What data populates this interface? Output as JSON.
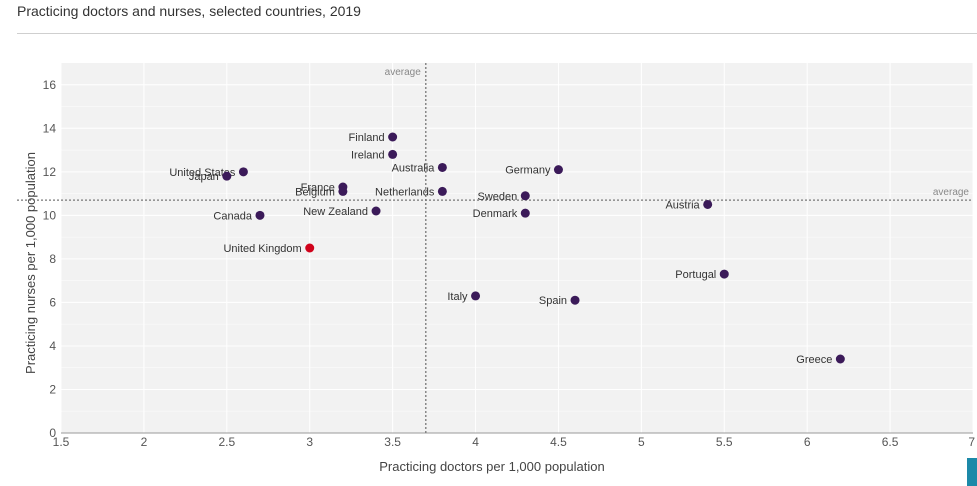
{
  "header": {
    "title": "Practicing doctors and nurses, selected countries, 2019"
  },
  "chart_data": {
    "type": "scatter",
    "xlabel": "Practicing doctors per 1,000 population",
    "ylabel": "Practicing nurses per 1,000 population",
    "xlim": [
      1.5,
      7
    ],
    "ylim": [
      0,
      17
    ],
    "xticks": [
      "1.5",
      "2",
      "2.5",
      "3",
      "3.5",
      "4",
      "4.5",
      "5",
      "5.5",
      "6",
      "6.5",
      "7"
    ],
    "yticks": [
      "0",
      "2",
      "4",
      "6",
      "8",
      "10",
      "12",
      "14",
      "16"
    ],
    "grid": true,
    "reference_lines": [
      {
        "axis": "x",
        "value": 3.7,
        "label": "average"
      },
      {
        "axis": "y",
        "value": 10.7,
        "label": "average"
      }
    ],
    "colors": {
      "default": "#3b1a59",
      "highlight": "#d0021b",
      "plot_bg": "#f2f2f2",
      "grid": "#ffffff"
    },
    "points": [
      {
        "label": "United States",
        "x": 2.6,
        "y": 12.0,
        "highlight": false
      },
      {
        "label": "Japan",
        "x": 2.5,
        "y": 11.8,
        "highlight": false
      },
      {
        "label": "Canada",
        "x": 2.7,
        "y": 10.0,
        "highlight": false
      },
      {
        "label": "France",
        "x": 3.2,
        "y": 11.3,
        "highlight": false
      },
      {
        "label": "Belgium",
        "x": 3.2,
        "y": 11.1,
        "highlight": false
      },
      {
        "label": "United Kingdom",
        "x": 3.0,
        "y": 8.5,
        "highlight": true
      },
      {
        "label": "New Zealand",
        "x": 3.4,
        "y": 10.2,
        "highlight": false
      },
      {
        "label": "Finland",
        "x": 3.5,
        "y": 13.6,
        "highlight": false
      },
      {
        "label": "Ireland",
        "x": 3.5,
        "y": 12.8,
        "highlight": false
      },
      {
        "label": "Australia",
        "x": 3.8,
        "y": 12.2,
        "highlight": false
      },
      {
        "label": "Netherlands",
        "x": 3.8,
        "y": 11.1,
        "highlight": false
      },
      {
        "label": "Germany",
        "x": 4.5,
        "y": 12.1,
        "highlight": false
      },
      {
        "label": "Sweden",
        "x": 4.3,
        "y": 10.9,
        "highlight": false
      },
      {
        "label": "Denmark",
        "x": 4.3,
        "y": 10.1,
        "highlight": false
      },
      {
        "label": "Austria",
        "x": 5.4,
        "y": 10.5,
        "highlight": false
      },
      {
        "label": "Italy",
        "x": 4.0,
        "y": 6.3,
        "highlight": false
      },
      {
        "label": "Spain",
        "x": 4.6,
        "y": 6.1,
        "highlight": false
      },
      {
        "label": "Portugal",
        "x": 5.5,
        "y": 7.3,
        "highlight": false
      },
      {
        "label": "Greece",
        "x": 6.2,
        "y": 3.4,
        "highlight": false
      }
    ]
  }
}
